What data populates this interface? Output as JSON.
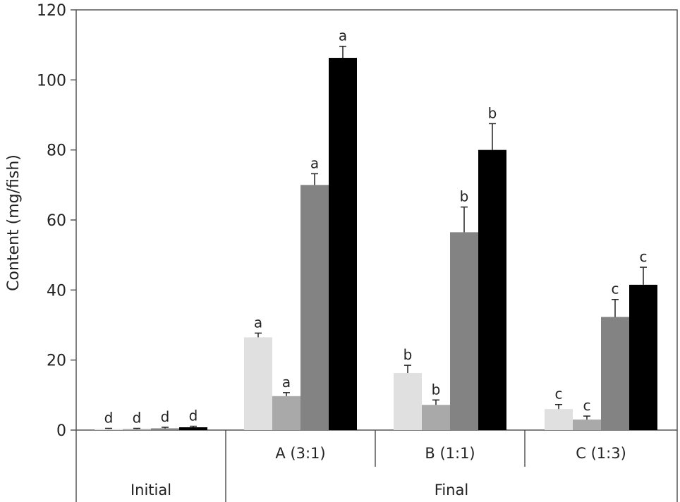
{
  "chart_data": {
    "type": "bar",
    "ylabel": "Content (mg/fish)",
    "ylim": [
      0,
      120
    ],
    "yticks": [
      0,
      20,
      40,
      60,
      80,
      100,
      120
    ],
    "grid": false,
    "categories": [
      "",
      "A (3:1)",
      "B (1:1)",
      "C (1:3)"
    ],
    "groups": [
      "Initial",
      "Final"
    ],
    "series": [
      {
        "color": "#e0e0e0",
        "values": [
          0.3,
          26.5,
          16.3,
          6.0
        ],
        "errors": [
          0.2,
          1.2,
          2.2,
          1.3
        ],
        "letters": [
          "d",
          "a",
          "b",
          "c"
        ]
      },
      {
        "color": "#a9a9a9",
        "values": [
          0.3,
          9.7,
          7.2,
          3.0
        ],
        "errors": [
          0.2,
          1.0,
          1.4,
          1.0
        ],
        "letters": [
          "d",
          "a",
          "b",
          "c"
        ]
      },
      {
        "color": "#838383",
        "values": [
          0.5,
          70.0,
          56.5,
          32.3
        ],
        "errors": [
          0.3,
          3.2,
          7.2,
          5.0
        ],
        "letters": [
          "d",
          "a",
          "b",
          "c"
        ]
      },
      {
        "color": "#000000",
        "values": [
          0.8,
          106.3,
          80.0,
          41.5
        ],
        "errors": [
          0.3,
          3.3,
          7.5,
          5.0
        ],
        "letters": [
          "d",
          "a",
          "b",
          "c"
        ]
      }
    ]
  }
}
